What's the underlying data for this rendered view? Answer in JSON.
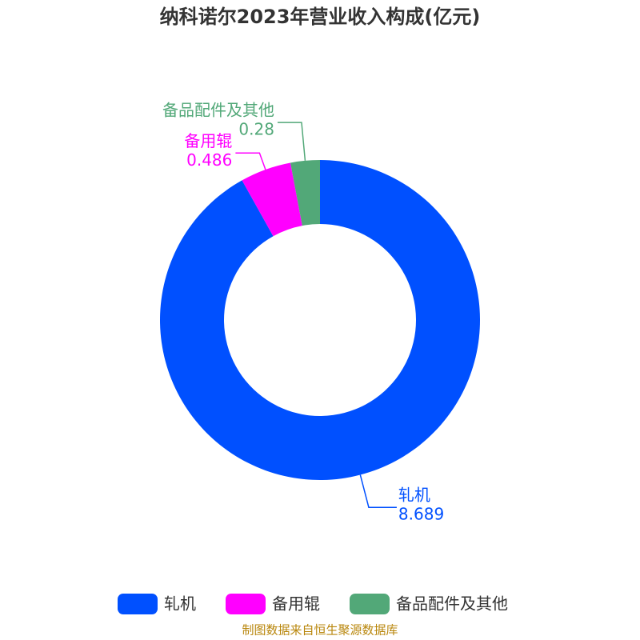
{
  "chart_data": {
    "type": "donut",
    "title": "纳科诺尔2023年营业收入构成(亿元)",
    "categories": [
      "轧机",
      "备用辊",
      "备品配件及其他"
    ],
    "values": [
      8.689,
      0.486,
      0.28
    ],
    "colors": [
      "#0050ff",
      "#ff00ff",
      "#52a878"
    ],
    "legend": "bottom",
    "source": "制图数据来自恒生聚源数据库"
  }
}
